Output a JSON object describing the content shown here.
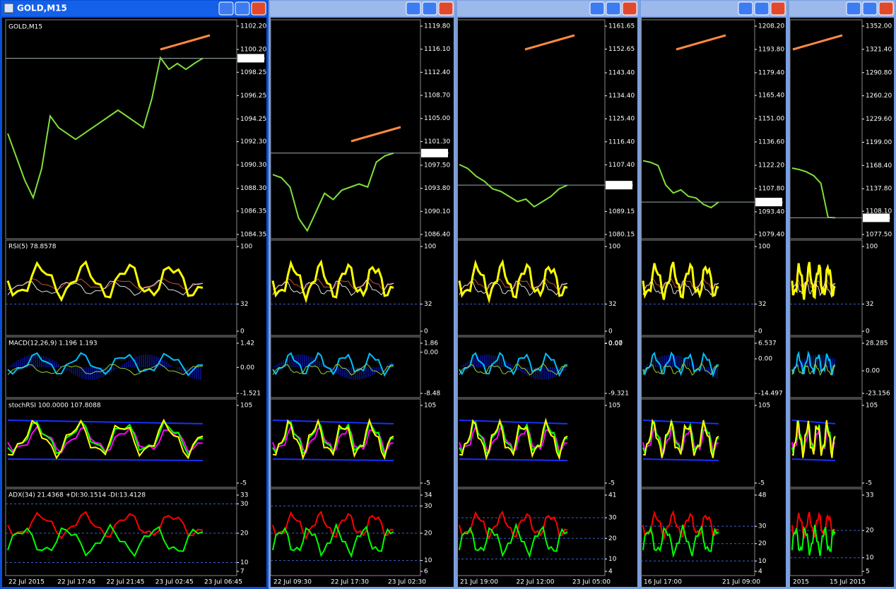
{
  "windows": [
    {
      "title": "GOLD,M15",
      "symbol_label": "GOLD,M15",
      "price": {
        "ticks": [
          "1102.20",
          "1100.20",
          "1098.25",
          "1096.25",
          "1094.25",
          "1092.30",
          "1090.30",
          "1088.30",
          "1086.35",
          "1084.35"
        ],
        "current": "1099.45",
        "close": [
          1093,
          1091,
          1089,
          1087.5,
          1090,
          1094.5,
          1093.5,
          1093,
          1092.5,
          1093,
          1093.5,
          1094,
          1094.5,
          1095,
          1094.5,
          1094,
          1093.5,
          1096,
          1099.5,
          1098.5,
          1099,
          1098.5,
          1099,
          1099.45
        ]
      },
      "rsi": {
        "label": "RSI(5) 78.8578",
        "ticks": [
          "100",
          "32",
          "0"
        ]
      },
      "macd": {
        "label": "MACD(12,26,9) 1.196 1.193",
        "ticks": [
          "1.42",
          "0.00",
          "-1.521"
        ]
      },
      "stoch": {
        "label": "stochRSI 100.0000 107.8088",
        "ticks": [
          "105",
          "-5"
        ]
      },
      "adx": {
        "label": "ADX(34) 21.4368 +DI:30.1514 -DI:13.4128",
        "ticks": [
          "33",
          "30",
          "20",
          "10",
          "7"
        ]
      },
      "times": [
        "22 Jul 2015",
        "22 Jul 17:45",
        "22 Jul 21:45",
        "23 Jul 02:45",
        "23 Jul 06:45"
      ]
    },
    {
      "price": {
        "ticks": [
          "1119.80",
          "1116.10",
          "1112.40",
          "1108.70",
          "1105.00",
          "1101.30",
          "1097.50",
          "1093.80",
          "1090.10",
          "1086.40"
        ],
        "current": "1099.45",
        "close": [
          1096,
          1095.5,
          1094,
          1089,
          1087,
          1090,
          1093,
          1092,
          1093.5,
          1094,
          1094.5,
          1094,
          1098,
          1099,
          1099.45
        ]
      },
      "rsi": {
        "ticks": [
          "100",
          "32",
          "0"
        ]
      },
      "macd": {
        "ticks": [
          "1.86",
          "0.00",
          "-8.48"
        ]
      },
      "stoch": {
        "ticks": [
          "105",
          "-5"
        ]
      },
      "adx": {
        "ticks": [
          "34",
          "30",
          "20",
          "10",
          "6"
        ]
      },
      "times": [
        "22 Jul 09:30",
        "22 Jul 17:30",
        "23 Jul 02:30"
      ]
    },
    {
      "price": {
        "ticks": [
          "1161.65",
          "1152.65",
          "1143.40",
          "1134.40",
          "1125.40",
          "1116.40",
          "1107.40",
          "1089.15",
          "1080.15"
        ],
        "current": "1099.45",
        "close": [
          1107.5,
          1106,
          1103,
          1101,
          1098,
          1097,
          1095,
          1093,
          1094,
          1091,
          1093,
          1095,
          1098,
          1099.45
        ]
      },
      "rsi": {
        "ticks": [
          "100",
          "32",
          "0"
        ]
      },
      "macd": {
        "ticks": [
          "0.07",
          "0.00",
          "-9.321"
        ]
      },
      "stoch": {
        "ticks": [
          "105",
          "-5"
        ]
      },
      "adx": {
        "ticks": [
          "41",
          "30",
          "20",
          "10",
          "4"
        ]
      },
      "times": [
        "21 Jul 19:00",
        "22 Jul 12:00",
        "23 Jul 05:00"
      ]
    },
    {
      "price": {
        "ticks": [
          "1208.20",
          "1193.80",
          "1179.40",
          "1165.40",
          "1151.00",
          "1136.60",
          "1122.20",
          "1107.80",
          "1093.40",
          "1079.40"
        ],
        "current": "1099.45",
        "close": [
          1125,
          1124,
          1122,
          1110,
          1105,
          1107,
          1103,
          1102,
          1098,
          1096,
          1099.45
        ]
      },
      "rsi": {
        "ticks": [
          "100",
          "32",
          "0"
        ]
      },
      "macd": {
        "ticks": [
          "6.537",
          "0.00",
          "-14.497"
        ]
      },
      "stoch": {
        "ticks": [
          "105",
          "-5"
        ]
      },
      "adx": {
        "ticks": [
          "48",
          "30",
          "20",
          "10",
          "4"
        ]
      },
      "times": [
        "16 Jul 17:00",
        "21 Jul 09:00"
      ]
    },
    {
      "price": {
        "ticks": [
          "1352.00",
          "1321.40",
          "1290.80",
          "1260.20",
          "1229.60",
          "1199.00",
          "1168.40",
          "1137.80",
          "1108.10",
          "1077.50"
        ],
        "current": "1099.45",
        "close": [
          1165,
          1163,
          1160,
          1155,
          1145,
          1100,
          1099.45
        ]
      },
      "rsi": {
        "ticks": [
          "100",
          "32",
          "0"
        ]
      },
      "macd": {
        "ticks": [
          "28.285",
          "0.00",
          "-23.156"
        ]
      },
      "stoch": {
        "ticks": [
          "105",
          "-5"
        ]
      },
      "adx": {
        "ticks": [
          "33",
          "20",
          "10",
          "5"
        ]
      },
      "times": [
        "2015",
        "15 Jul 2015"
      ]
    }
  ]
}
